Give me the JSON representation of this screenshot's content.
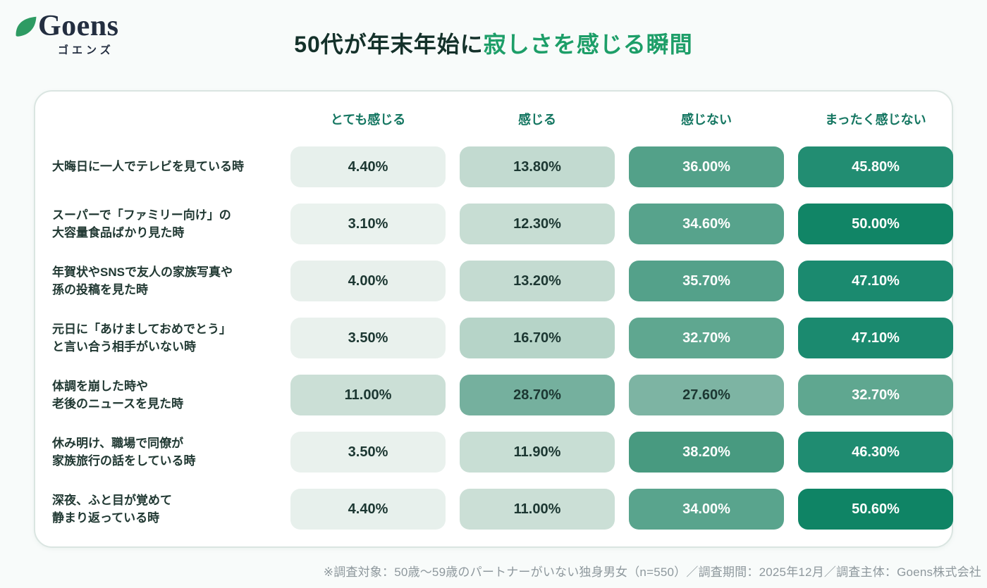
{
  "logo": {
    "name": "Goens",
    "subtitle": "ゴエンズ",
    "leaf_color": "#2E9B63",
    "text_color": "#232E40"
  },
  "title": {
    "part1": "50代が年末年始に",
    "part2": "寂しさを感じる瞬間",
    "part1_color": "#14312A",
    "part2_color": "#1D9E68"
  },
  "table": {
    "columns": [
      "とても感じる",
      "感じる",
      "感じない",
      "まったく感じない"
    ],
    "header_color": "#147661",
    "rows": [
      {
        "label_lines": [
          "大晦日に一人でテレビを見ている時"
        ],
        "cells": [
          {
            "value": "4.40%",
            "bg": "#E7F0EC",
            "fg": "#1C3732"
          },
          {
            "value": "13.80%",
            "bg": "#C2DAD0",
            "fg": "#1C3732"
          },
          {
            "value": "36.00%",
            "bg": "#53A189",
            "fg": "#FFFFFF"
          },
          {
            "value": "45.80%",
            "bg": "#228D72",
            "fg": "#FFFFFF"
          }
        ]
      },
      {
        "label_lines": [
          "スーパーで「ファミリー向け」の",
          "大容量食品ばかり見た時"
        ],
        "cells": [
          {
            "value": "3.10%",
            "bg": "#EAF2EE",
            "fg": "#1C3732"
          },
          {
            "value": "12.30%",
            "bg": "#C7DDD3",
            "fg": "#1C3732"
          },
          {
            "value": "34.60%",
            "bg": "#57A38C",
            "fg": "#FFFFFF"
          },
          {
            "value": "50.00%",
            "bg": "#118566",
            "fg": "#FFFFFF"
          }
        ]
      },
      {
        "label_lines": [
          "年賀状やSNSで友人の家族写真や",
          "孫の投稿を見た時"
        ],
        "cells": [
          {
            "value": "4.00%",
            "bg": "#E8F0EC",
            "fg": "#1C3732"
          },
          {
            "value": "13.20%",
            "bg": "#C4DBD1",
            "fg": "#1C3732"
          },
          {
            "value": "35.70%",
            "bg": "#54A18A",
            "fg": "#FFFFFF"
          },
          {
            "value": "47.10%",
            "bg": "#1B8A6F",
            "fg": "#FFFFFF"
          }
        ]
      },
      {
        "label_lines": [
          "元日に「あけましておめでとう」",
          "と言い合う相手がいない時"
        ],
        "cells": [
          {
            "value": "3.50%",
            "bg": "#E9F1ED",
            "fg": "#1C3732"
          },
          {
            "value": "16.70%",
            "bg": "#B6D4C8",
            "fg": "#1C3732"
          },
          {
            "value": "32.70%",
            "bg": "#5FA790",
            "fg": "#FFFFFF"
          },
          {
            "value": "47.10%",
            "bg": "#1B8A6F",
            "fg": "#FFFFFF"
          }
        ]
      },
      {
        "label_lines": [
          "体調を崩した時や",
          "老後のニュースを見た時"
        ],
        "cells": [
          {
            "value": "11.00%",
            "bg": "#CBDFD6",
            "fg": "#1C3732"
          },
          {
            "value": "28.70%",
            "bg": "#75B09E",
            "fg": "#1C3732"
          },
          {
            "value": "27.60%",
            "bg": "#7DB4A3",
            "fg": "#1C3732"
          },
          {
            "value": "32.70%",
            "bg": "#5FA790",
            "fg": "#FFFFFF"
          }
        ]
      },
      {
        "label_lines": [
          "休み明け、職場で同僚が",
          "家族旅行の話をしている時"
        ],
        "cells": [
          {
            "value": "3.50%",
            "bg": "#E9F1ED",
            "fg": "#1C3732"
          },
          {
            "value": "11.90%",
            "bg": "#C8DED4",
            "fg": "#1C3732"
          },
          {
            "value": "38.20%",
            "bg": "#489A80",
            "fg": "#FFFFFF"
          },
          {
            "value": "46.30%",
            "bg": "#1F8C71",
            "fg": "#FFFFFF"
          }
        ]
      },
      {
        "label_lines": [
          "深夜、ふと目が覚めて",
          "静まり返っている時"
        ],
        "cells": [
          {
            "value": "4.40%",
            "bg": "#E7F0EC",
            "fg": "#1C3732"
          },
          {
            "value": "11.00%",
            "bg": "#CBDFD6",
            "fg": "#1C3732"
          },
          {
            "value": "34.00%",
            "bg": "#59A48D",
            "fg": "#FFFFFF"
          },
          {
            "value": "50.60%",
            "bg": "#0F8465",
            "fg": "#FFFFFF"
          }
        ]
      }
    ]
  },
  "footer": {
    "note": "※調査対象：50歳〜59歳のパートナーがいない独身男女（n=550）／調査期間：2025年12月／調査主体：Goens株式会社"
  },
  "chart_data": {
    "type": "heatmap",
    "title": "50代が年末年始に寂しさを感じる瞬間",
    "columns": [
      "とても感じる",
      "感じる",
      "感じない",
      "まったく感じない"
    ],
    "rows": [
      "大晦日に一人でテレビを見ている時",
      "スーパーで「ファミリー向け」の大容量食品ばかり見た時",
      "年賀状やSNSで友人の家族写真や孫の投稿を見た時",
      "元日に「あけましておめでとう」と言い合う相手がいない時",
      "体調を崩した時や老後のニュースを見た時",
      "休み明け、職場で同僚が家族旅行の話をしている時",
      "深夜、ふと目が覚めて静まり返っている時"
    ],
    "values": [
      [
        4.4,
        13.8,
        36.0,
        45.8
      ],
      [
        3.1,
        12.3,
        34.6,
        50.0
      ],
      [
        4.0,
        13.2,
        35.7,
        47.1
      ],
      [
        3.5,
        16.7,
        32.7,
        47.1
      ],
      [
        11.0,
        28.7,
        27.6,
        32.7
      ],
      [
        3.5,
        11.9,
        38.2,
        46.3
      ],
      [
        4.4,
        11.0,
        34.0,
        50.6
      ]
    ],
    "unit": "%",
    "color_scale": {
      "low": "#EAF2EE",
      "high": "#0F8465"
    },
    "legend_position": "none",
    "source_note": "※調査対象：50歳〜59歳のパートナーがいない独身男女（n=550）／調査期間：2025年12月／調査主体：Goens株式会社"
  }
}
